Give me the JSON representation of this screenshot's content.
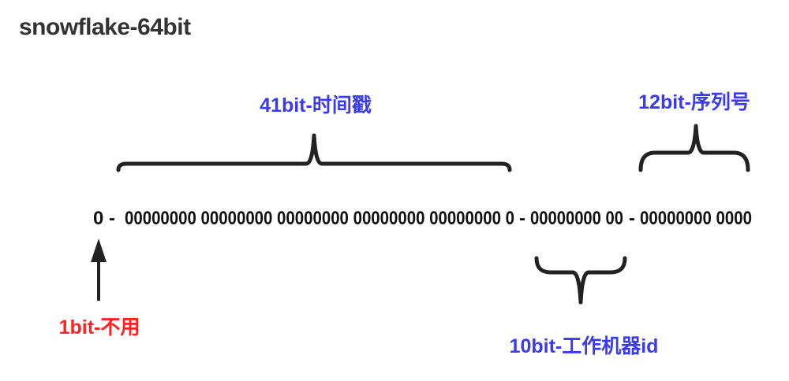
{
  "title": "snowflake-64bit",
  "colors": {
    "sign": "#ff2222",
    "field": "#3a3aef",
    "bits": "#111111",
    "brace": "#222222",
    "title": "#333333"
  },
  "bits": {
    "sign": "0",
    "sep1": "-",
    "timestamp": "00000000 00000000 00000000 00000000 00000000 0",
    "sep2": "-",
    "machine": "00000000 00",
    "sep3": "-",
    "sequence": "00000000 0000"
  },
  "segments": {
    "sign_label": "1bit-不用",
    "timestamp_label": "41bit-时间戳",
    "machine_label": "10bit-工作机器id",
    "sequence_label": "12bit-序列号"
  }
}
